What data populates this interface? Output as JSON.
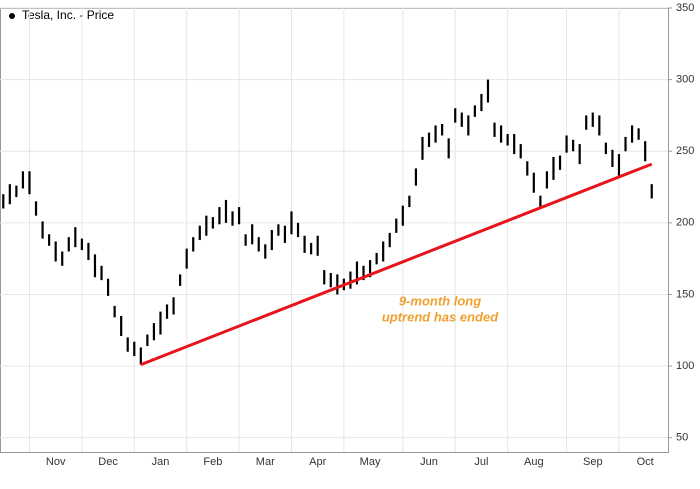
{
  "chart_data": {
    "type": "ohlc",
    "title": "Tesla, Inc. - Price",
    "color": "#000000",
    "categories": [
      null,
      null,
      null,
      null,
      null,
      null,
      null,
      null,
      "Nov",
      null,
      null,
      null,
      null,
      null,
      null,
      null,
      "Dec",
      null,
      null,
      null,
      null,
      null,
      null,
      null,
      "Jan",
      null,
      null,
      null,
      null,
      null,
      null,
      null,
      "Feb",
      null,
      null,
      null,
      null,
      null,
      null,
      null,
      "Mar",
      null,
      null,
      null,
      null,
      null,
      null,
      null,
      "Apr",
      null,
      null,
      null,
      null,
      null,
      null,
      null,
      "May",
      null,
      null,
      null,
      null,
      null,
      null,
      null,
      null,
      "Jun",
      null,
      null,
      null,
      null,
      null,
      null,
      null,
      "Jul",
      null,
      null,
      null,
      null,
      null,
      null,
      null,
      "Aug",
      null,
      null,
      null,
      null,
      null,
      null,
      null,
      null,
      "Sep",
      null,
      null,
      null,
      null,
      null,
      null,
      null,
      "Oct",
      null
    ],
    "high": [
      220,
      227,
      226,
      236,
      236,
      215,
      201,
      192,
      187,
      180,
      190,
      197,
      189,
      186,
      178,
      170,
      161,
      142,
      135,
      120,
      117,
      113,
      122,
      130,
      138,
      143,
      148,
      164,
      182,
      190,
      198,
      205,
      204,
      211,
      216,
      208,
      211,
      192,
      199,
      190,
      185,
      195,
      199,
      198,
      208,
      200,
      191,
      186,
      191,
      167,
      165,
      164,
      161,
      166,
      173,
      170,
      174,
      179,
      187,
      193,
      203,
      212,
      219,
      238,
      260,
      263,
      268,
      269,
      259,
      280,
      277,
      275,
      282,
      290,
      300,
      270,
      268,
      262,
      262,
      255,
      243,
      235,
      219,
      236,
      246,
      247,
      261,
      258,
      255,
      275,
      277,
      275,
      256,
      251,
      248,
      260,
      268,
      266,
      257,
      227
    ],
    "low": [
      210,
      213,
      218,
      224,
      220,
      205,
      189,
      184,
      173,
      170,
      180,
      183,
      181,
      174,
      162,
      160,
      149,
      134,
      121,
      110,
      107,
      101,
      114,
      118,
      122,
      133,
      136,
      156,
      168,
      180,
      188,
      191,
      196,
      199,
      200,
      198,
      199,
      184,
      185,
      180,
      175,
      181,
      191,
      186,
      192,
      190,
      179,
      178,
      177,
      157,
      155,
      150,
      153,
      154,
      157,
      160,
      162,
      171,
      173,
      183,
      193,
      198,
      211,
      226,
      244,
      253,
      256,
      261,
      245,
      270,
      267,
      261,
      274,
      278,
      284,
      260,
      256,
      254,
      248,
      245,
      233,
      221,
      211,
      224,
      230,
      237,
      249,
      250,
      241,
      265,
      267,
      261,
      248,
      239,
      232,
      250,
      256,
      258,
      243,
      217
    ],
    "trendline": {
      "color": "#e8141c",
      "values": [
        101,
        241
      ]
    },
    "annotation": [
      "9-month long",
      "uptrend has ended"
    ],
    "ylim": [
      40,
      350
    ],
    "yticks": [
      50,
      100,
      150,
      200,
      250,
      300,
      350
    ],
    "grid": true
  }
}
